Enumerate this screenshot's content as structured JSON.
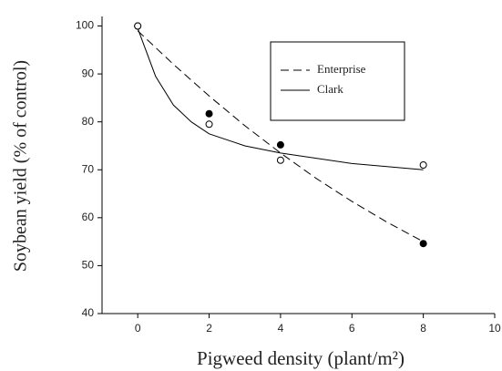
{
  "chart_data": {
    "type": "scatter",
    "x_label": "Pigweed density (plant/m²)",
    "y_label": "Soybean yield (% of control)",
    "x": [
      0,
      2,
      4,
      8
    ],
    "series": [
      {
        "name": "Enterprise",
        "color": "#000000",
        "marker": "filled",
        "dash": "9,5",
        "values": [
          100,
          81.7,
          75.2,
          54.6
        ],
        "fit": {
          "x": [
            0,
            1,
            2,
            3,
            4,
            5,
            6,
            7,
            8
          ],
          "values": [
            99,
            92,
            85.4,
            79.2,
            73.5,
            68.2,
            63.4,
            59,
            55
          ]
        }
      },
      {
        "name": "Clark",
        "color": "#000000",
        "marker": "open",
        "dash": "none",
        "values": [
          100,
          79.5,
          72,
          71
        ],
        "fit": {
          "x": [
            0,
            0.5,
            1,
            1.5,
            2,
            3,
            4,
            6,
            8
          ],
          "values": [
            99.5,
            89.5,
            83.5,
            80,
            77.5,
            75,
            73.5,
            71.3,
            70
          ]
        }
      }
    ],
    "xlim": [
      -1,
      10
    ],
    "xticks": [
      0,
      2,
      4,
      6,
      8,
      10
    ],
    "ylim": [
      40,
      102
    ],
    "yticks": [
      40,
      50,
      60,
      70,
      80,
      90,
      100
    ],
    "grid": false
  }
}
